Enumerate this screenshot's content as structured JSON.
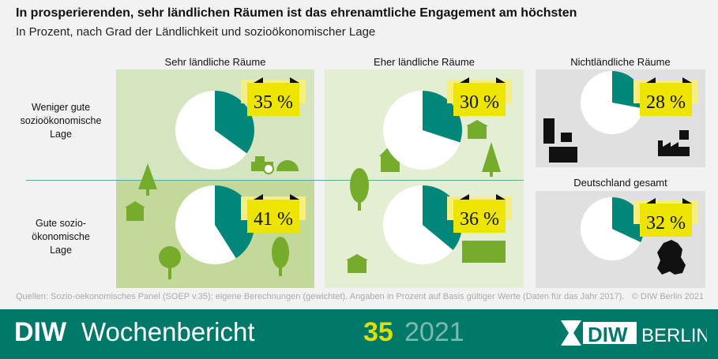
{
  "title": "In prosperierenden, sehr ländlichen Räumen ist das ehrenamtliche Engagement am höchsten",
  "subtitle": "In Prozent, nach Grad der Ländlichkeit und sozioökonomischer Lage",
  "columns": [
    "Sehr ländliche Räume",
    "Eher ländliche Räume",
    "Nichtländliche Räume",
    "Deutschland gesamt"
  ],
  "rows": [
    [
      "Weniger gute",
      "sozioökonomische",
      "Lage"
    ],
    [
      "Gute sozio-",
      "ökonomische",
      "Lage"
    ]
  ],
  "source": "Quellen: Sozio-oekonomisches Panel (SOEP v.35); eigene Berechnungen (gewichtet). Angaben in Prozent auf Basis gültiger Werte (Daten für das Jahr 2017).",
  "copyright": "© DIW Berlin 2021",
  "footer": {
    "brand": "DIW",
    "publication": "Wochenbericht",
    "issue": "35",
    "year": "2021",
    "logo": "DIW BERLIN"
  },
  "colors": {
    "slice": "#00877a",
    "rest": "#ffffff",
    "label": "#ede500",
    "footer": "#00786a"
  },
  "chart_data": {
    "type": "pie",
    "pies": [
      {
        "area": "Sehr ländliche Räume",
        "lage": "Weniger gute sozioökonomische Lage",
        "value": 35,
        "label": "35 %"
      },
      {
        "area": "Eher ländliche Räume",
        "lage": "Weniger gute sozioökonomische Lage",
        "value": 30,
        "label": "30 %"
      },
      {
        "area": "Nichtländliche Räume",
        "lage": "",
        "value": 28,
        "label": "28 %"
      },
      {
        "area": "Sehr ländliche Räume",
        "lage": "Gute sozioökonomische Lage",
        "value": 41,
        "label": "41 %"
      },
      {
        "area": "Eher ländliche Räume",
        "lage": "Gute sozioökonomische Lage",
        "value": 36,
        "label": "36 %"
      },
      {
        "area": "Deutschland gesamt",
        "lage": "",
        "value": 32,
        "label": "32 %"
      }
    ]
  }
}
